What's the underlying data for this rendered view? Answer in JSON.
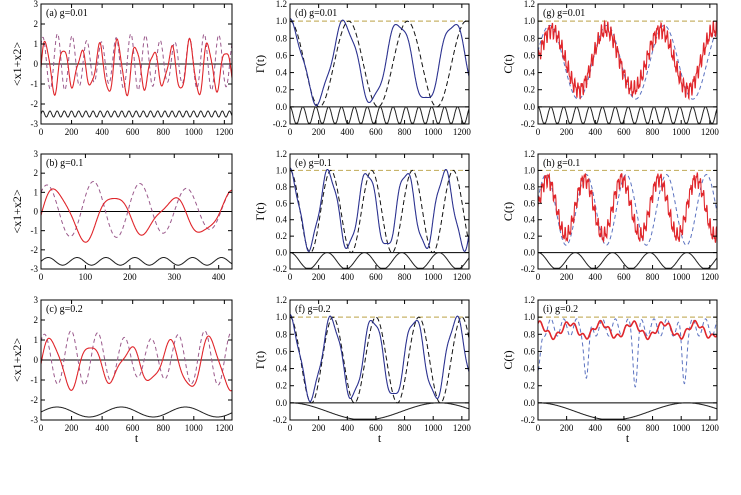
{
  "xlabel": "t",
  "colors": {
    "solid_red": "#e0262b",
    "dashed_red": "#9b5a8c",
    "solid_blue": "#2c3290",
    "dashed_black": "#111111",
    "dashed_blue": "#5b72c0",
    "reference": "#c8b46a"
  },
  "chart_data": [
    {
      "id": "a",
      "type": "line",
      "label": "(a)  g=0.01",
      "ylabel": "<x1+x2>",
      "xlim": [
        0,
        1250
      ],
      "ylim": [
        -3,
        3
      ],
      "xticks": [
        0,
        200,
        400,
        600,
        800,
        1000,
        1200
      ],
      "yticks": [
        -3,
        -2,
        -1,
        0,
        1,
        2,
        3
      ],
      "signal": "position",
      "periods": [
        118,
        96
      ],
      "amp": 1.35,
      "drive_amp": 0.15,
      "drive_offset": -2.5,
      "drive_period": 47
    },
    {
      "id": "b",
      "type": "line",
      "label": "(b)  g=0.1",
      "ylabel": "<x1+x2>",
      "xlim": [
        0,
        430
      ],
      "ylim": [
        -3,
        3
      ],
      "xticks": [
        0,
        100,
        200,
        300,
        400
      ],
      "yticks": [
        -3,
        -2,
        -1,
        0,
        1,
        2,
        3
      ],
      "signal": "position",
      "periods": [
        132,
        105
      ],
      "amp": 1.4,
      "drive_amp": 0.2,
      "drive_offset": -2.6,
      "drive_period": 65
    },
    {
      "id": "c",
      "type": "line",
      "label": "(c)  g=0.2",
      "ylabel": "<x1+x2>",
      "xlim": [
        0,
        1250
      ],
      "ylim": [
        -3,
        3
      ],
      "xticks": [
        0,
        200,
        400,
        600,
        800,
        1000,
        1200
      ],
      "yticks": [
        -3,
        -2,
        -1,
        0,
        1,
        2,
        3
      ],
      "signal": "position",
      "periods": [
        260,
        175
      ],
      "amp": 1.3,
      "drive_amp": 0.25,
      "drive_offset": -2.6,
      "drive_period": 420
    },
    {
      "id": "d",
      "type": "line",
      "label": "(d)  g=0.01",
      "ylabel": "Γ(t)",
      "xlim": [
        0,
        1250
      ],
      "ylim": [
        -0.2,
        1.2
      ],
      "xticks": [
        0,
        200,
        400,
        600,
        800,
        1000,
        1200
      ],
      "yticks": [
        -0.2,
        0.0,
        0.2,
        0.4,
        0.6,
        0.8,
        1.0,
        1.2
      ],
      "signal": "fidelity",
      "periods": [
        380,
        410
      ],
      "drive_period": 90
    },
    {
      "id": "e",
      "type": "line",
      "label": "(e)  g=0.1",
      "ylabel": "Γ(t)",
      "xlim": [
        0,
        1250
      ],
      "ylim": [
        -0.2,
        1.2
      ],
      "xticks": [
        0,
        200,
        400,
        600,
        800,
        1000,
        1200
      ],
      "yticks": [
        -0.2,
        0.0,
        0.2,
        0.4,
        0.6,
        0.8,
        1.0,
        1.2
      ],
      "signal": "fidelity",
      "periods": [
        270,
        285
      ],
      "drive_period": 260
    },
    {
      "id": "f",
      "type": "line",
      "label": "(f)  g=0.2",
      "ylabel": "Γ(t)",
      "xlim": [
        0,
        1250
      ],
      "ylim": [
        -0.2,
        1.2
      ],
      "xticks": [
        0,
        200,
        400,
        600,
        800,
        1000,
        1200
      ],
      "yticks": [
        -0.2,
        0.0,
        0.2,
        0.4,
        0.6,
        0.8,
        1.0,
        1.2
      ],
      "signal": "fidelity",
      "periods": [
        290,
        300
      ],
      "drive_period": 1040
    },
    {
      "id": "g",
      "type": "line",
      "label": "(g)  g=0.01",
      "ylabel": "C(t)",
      "xlim": [
        0,
        1250
      ],
      "ylim": [
        -0.2,
        1.2
      ],
      "xticks": [
        0,
        200,
        400,
        600,
        800,
        1000,
        1200
      ],
      "yticks": [
        -0.2,
        0.0,
        0.2,
        0.4,
        0.6,
        0.8,
        1.0,
        1.2
      ],
      "signal": "concurrence",
      "periods": [
        380,
        400
      ],
      "drive_period": 90
    },
    {
      "id": "h",
      "type": "line",
      "label": "(h)  g=0.1",
      "ylabel": "C(t)",
      "xlim": [
        0,
        1250
      ],
      "ylim": [
        -0.2,
        1.2
      ],
      "xticks": [
        0,
        200,
        400,
        600,
        800,
        1000,
        1200
      ],
      "yticks": [
        -0.2,
        0.0,
        0.2,
        0.4,
        0.6,
        0.8,
        1.0,
        1.2
      ],
      "signal": "concurrence",
      "periods": [
        260,
        280
      ],
      "drive_period": 260
    },
    {
      "id": "i",
      "type": "line",
      "label": "(i)  g=0.2",
      "ylabel": "C(t)",
      "xlim": [
        0,
        1250
      ],
      "ylim": [
        -0.2,
        1.2
      ],
      "xticks": [
        0,
        200,
        400,
        600,
        800,
        1000,
        1200
      ],
      "yticks": [
        -0.2,
        0.0,
        0.2,
        0.4,
        0.6,
        0.8,
        1.0,
        1.2
      ],
      "signal": "concurrence_small",
      "periods": [
        220,
        340
      ],
      "drive_period": 1040
    }
  ]
}
